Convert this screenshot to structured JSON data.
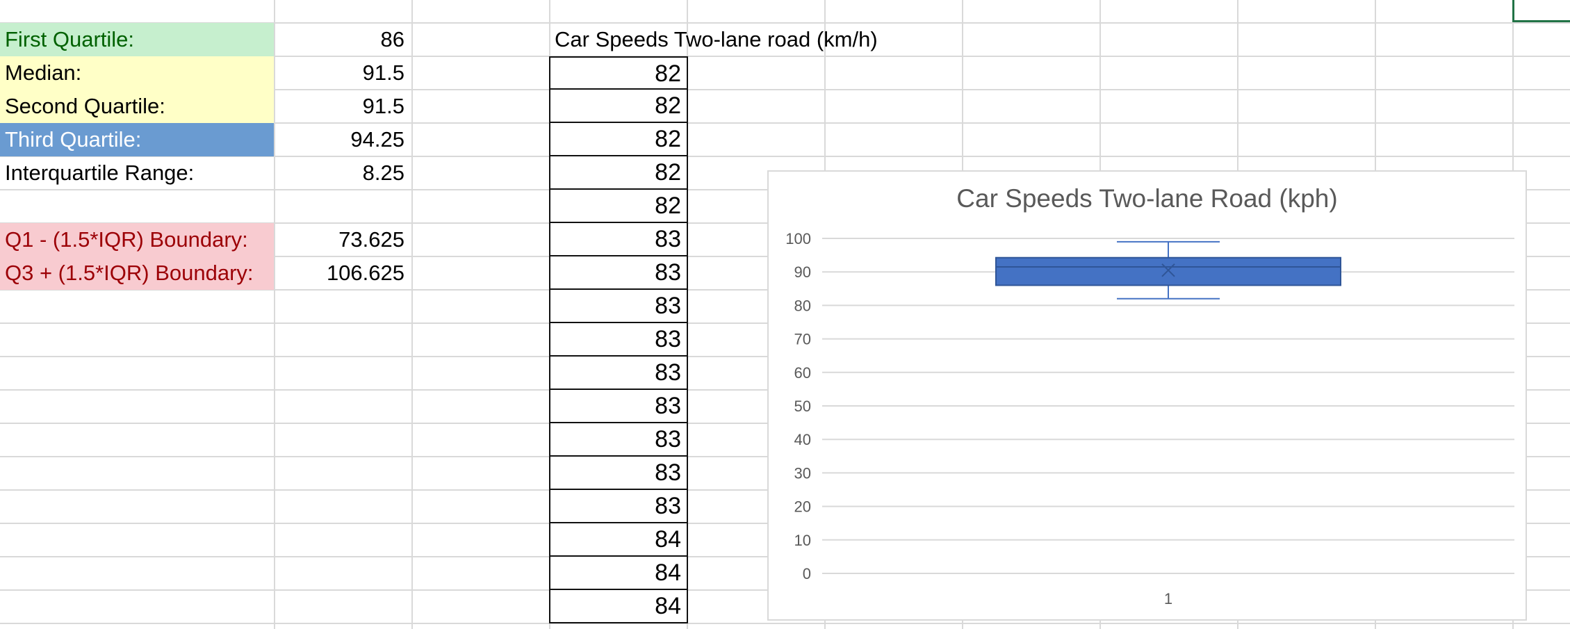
{
  "stats": [
    {
      "label": "First Quartile:",
      "value": "86",
      "style": "g"
    },
    {
      "label": "Median:",
      "value": "91.5",
      "style": "y"
    },
    {
      "label": "Second Quartile:",
      "value": "91.5",
      "style": "y"
    },
    {
      "label": "Third Quartile:",
      "value": "94.25",
      "style": "b"
    },
    {
      "label": "Interquartile Range:",
      "value": "8.25",
      "style": "plain"
    },
    {
      "label": "",
      "value": "",
      "style": "plain"
    },
    {
      "label": "Q1 - (1.5*IQR) Boundary:",
      "value": "73.625",
      "style": "r"
    },
    {
      "label": "Q3 + (1.5*IQR) Boundary:",
      "value": "106.625",
      "style": "r"
    }
  ],
  "data_column": {
    "header": "Car Speeds Two-lane road (km/h)",
    "values": [
      "82",
      "82",
      "82",
      "82",
      "82",
      "83",
      "83",
      "83",
      "83",
      "83",
      "83",
      "83",
      "83",
      "83",
      "84",
      "84",
      "84"
    ]
  },
  "colors": {
    "box_fill": "#4472c4",
    "box_stroke": "#2f5597",
    "gridline": "#d9d9d9",
    "axis_text": "#595959",
    "selection": "#217346"
  },
  "chart_data": {
    "type": "box",
    "title": "Car Speeds Two-lane Road (kph)",
    "categories": [
      "1"
    ],
    "ylim": [
      0,
      100
    ],
    "yticks": [
      0,
      10,
      20,
      30,
      40,
      50,
      60,
      70,
      80,
      90,
      100
    ],
    "grid": true,
    "boxes": [
      {
        "category": "1",
        "min": 82,
        "q1": 86,
        "median": 91.5,
        "q3": 94.25,
        "max": 99,
        "mean": 90.5
      }
    ]
  }
}
